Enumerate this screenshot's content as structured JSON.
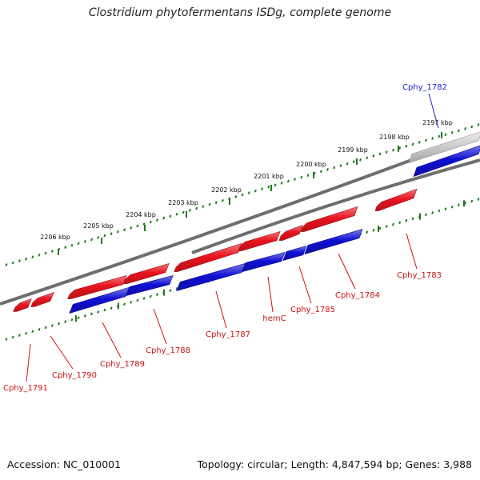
{
  "title": "Clostridium phytofermentans ISDg, complete genome",
  "accession_label": "Accession: NC_010001",
  "summary_label": "Topology: circular; Length: 4,847,594 bp; Genes: 3,988",
  "scale_ticks": [
    "2197 kbp",
    "2198 kbp",
    "2199 kbp",
    "2200 kbp",
    "2201 kbp",
    "2202 kbp",
    "2203 kbp",
    "2204 kbp",
    "2205 kbp",
    "2206 kbp"
  ],
  "genes": [
    {
      "name": "Cphy_1782",
      "strand": "forward",
      "highlight": true
    },
    {
      "name": "Cphy_1783",
      "strand": "reverse"
    },
    {
      "name": "Cphy_1784",
      "strand": "reverse"
    },
    {
      "name": "Cphy_1785",
      "strand": "reverse"
    },
    {
      "name": "hemC",
      "strand": "reverse"
    },
    {
      "name": "Cphy_1787",
      "strand": "reverse"
    },
    {
      "name": "Cphy_1788",
      "strand": "reverse"
    },
    {
      "name": "Cphy_1789",
      "strand": "reverse"
    },
    {
      "name": "Cphy_1790",
      "strand": "reverse"
    },
    {
      "name": "Cphy_1791",
      "strand": "reverse"
    }
  ],
  "colors": {
    "reverse_strand_gene": "#e8141e",
    "forward_strand_gene": "#1010d2",
    "highlight_label": "#2222cc",
    "gene_label": "#cc1111",
    "backbone": "#6e6e6e",
    "tick_marks": "#1e7a1e"
  }
}
